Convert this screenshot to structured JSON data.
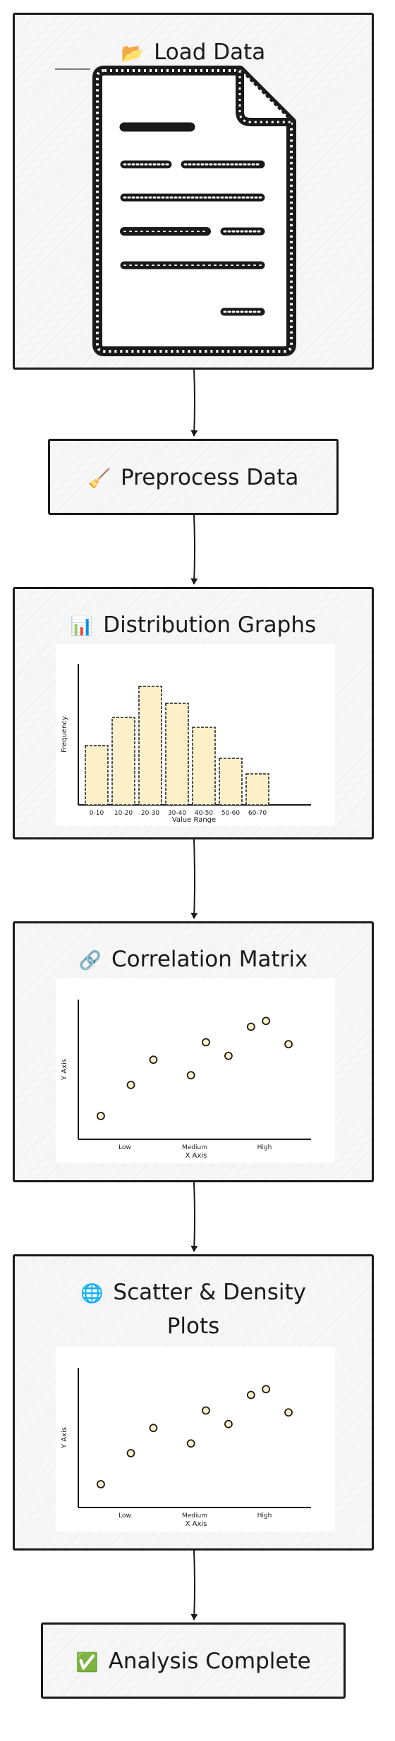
{
  "steps": {
    "load": {
      "icon": "📂",
      "label": "Load Data"
    },
    "preprocess": {
      "icon": "🧹",
      "label": "Preprocess Data"
    },
    "distribution": {
      "icon": "📊",
      "label": "Distribution Graphs"
    },
    "correlation": {
      "icon": "🔗",
      "label": "Correlation Matrix"
    },
    "scatter": {
      "icon": "🌐",
      "label_line1": "Scatter & Density",
      "label_line2": "Plots"
    },
    "complete": {
      "icon": "✅",
      "label": "Analysis Complete"
    }
  },
  "icons": {
    "load": "document-icon",
    "preprocess": "broom-icon",
    "distribution": "bar-chart-icon",
    "correlation": "link-icon",
    "scatter": "globe-icon",
    "complete": "check-mark-icon"
  },
  "colors": {
    "bar_fill": "#fdf0c8",
    "point_fill": "#fdf0c8",
    "ink": "#1a1a1a"
  },
  "chart_data": [
    {
      "type": "bar",
      "categories": [
        "0-10",
        "10-20",
        "20-30",
        "30-40",
        "40-50",
        "50-60",
        "60-70"
      ],
      "values": [
        42,
        62,
        84,
        72,
        55,
        33,
        22
      ],
      "xlabel": "Value Range",
      "ylabel": "Frequency",
      "ylim": [
        0,
        100
      ],
      "grid": false
    },
    {
      "type": "scatter",
      "x_ticks": [
        "Low",
        "Medium",
        "High"
      ],
      "x": [
        0.1,
        0.5,
        0.8,
        1.3,
        1.5,
        1.8,
        2.1,
        2.3,
        2.6
      ],
      "y": [
        1.2,
        2.8,
        4.1,
        3.3,
        5.0,
        4.3,
        5.8,
        6.1,
        4.9
      ],
      "xlabel": "X Axis",
      "ylabel": "Y Axis",
      "xlim": [
        -0.2,
        2.9
      ],
      "ylim": [
        0,
        7.2
      ]
    },
    {
      "type": "scatter",
      "x_ticks": [
        "Low",
        "Medium",
        "High"
      ],
      "x": [
        0.1,
        0.5,
        0.8,
        1.3,
        1.5,
        1.8,
        2.1,
        2.3,
        2.6
      ],
      "y": [
        1.2,
        2.8,
        4.1,
        3.3,
        5.0,
        4.3,
        5.8,
        6.1,
        4.9
      ],
      "xlabel": "X Axis",
      "ylabel": "Y Axis",
      "xlim": [
        -0.2,
        2.9
      ],
      "ylim": [
        0,
        7.2
      ]
    }
  ]
}
